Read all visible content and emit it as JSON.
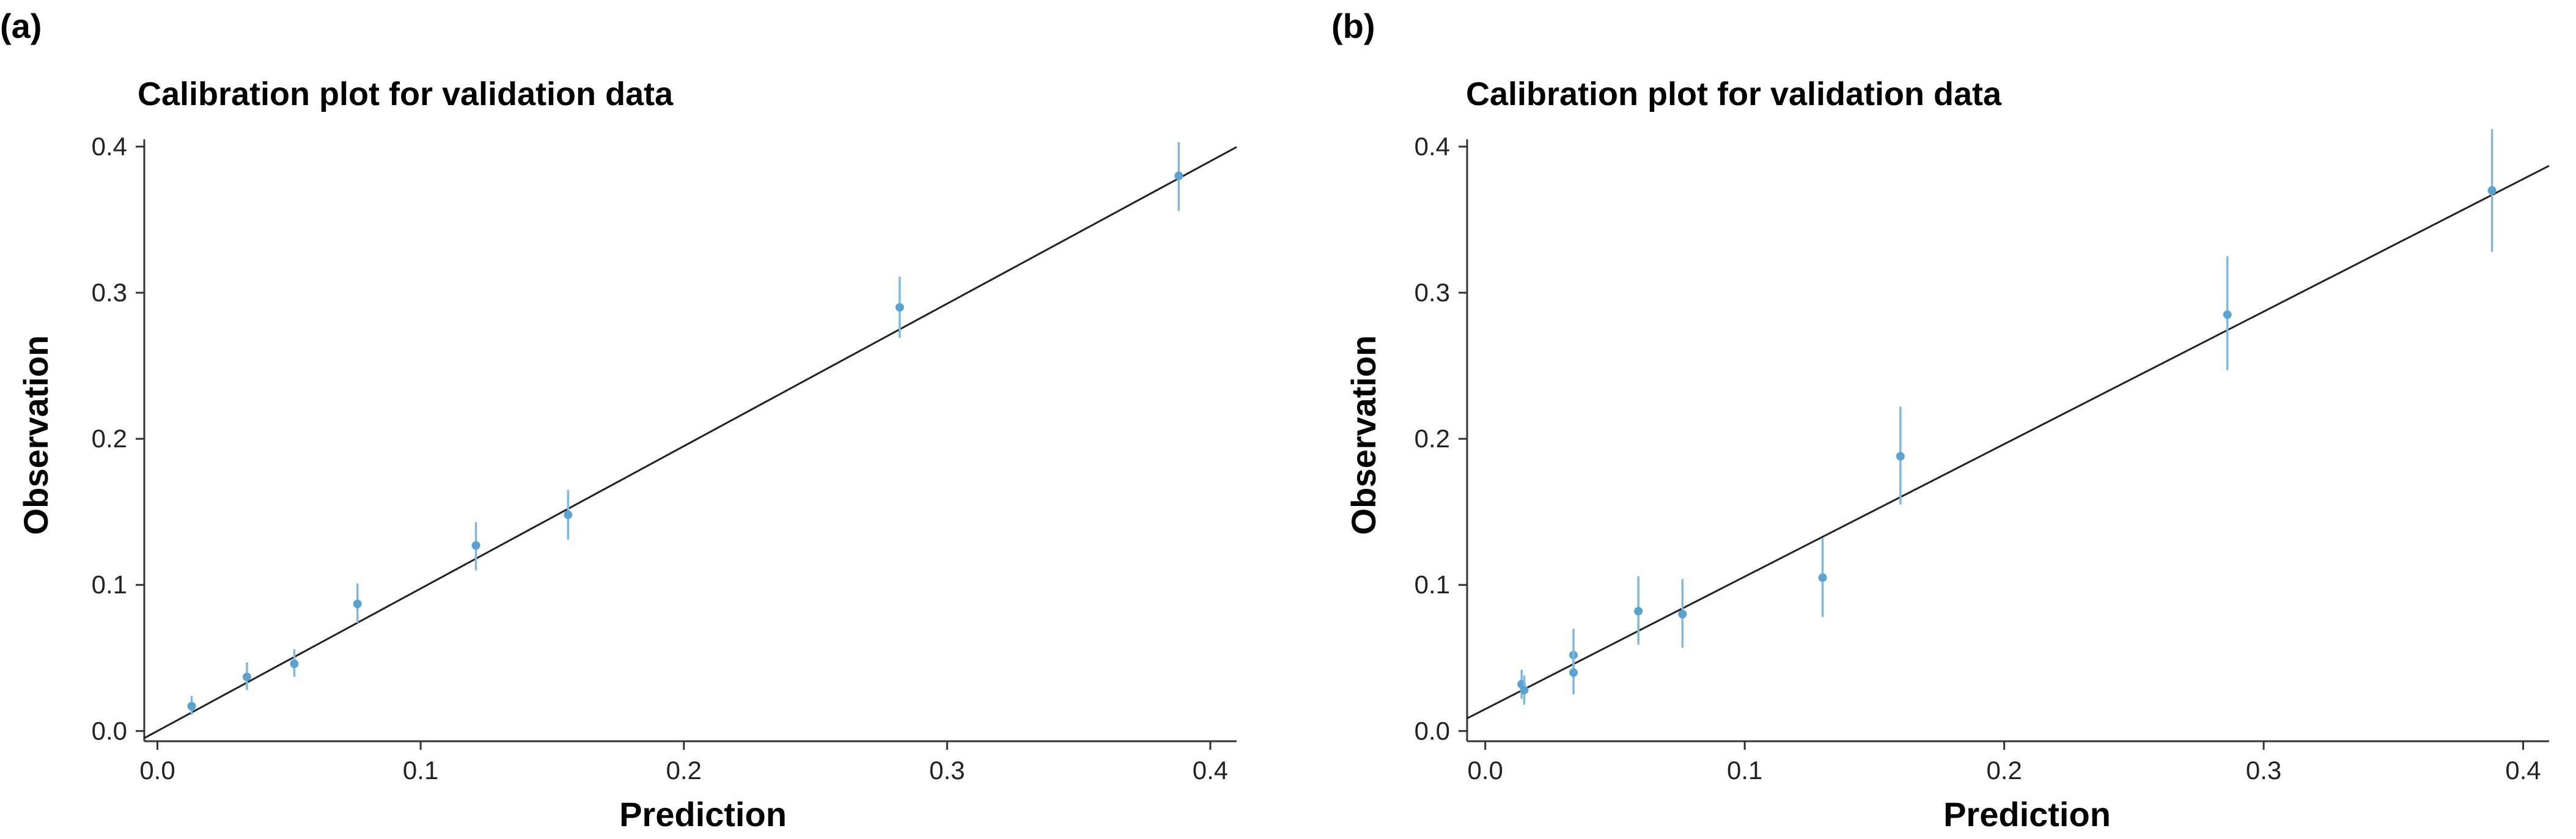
{
  "chart_data": [
    {
      "type": "scatter",
      "panel_label": "(a)",
      "title": "Calibration plot for validation data",
      "xlabel": "Prediction",
      "ylabel": "Observation",
      "xlim": [
        -0.005,
        0.41
      ],
      "ylim": [
        -0.007,
        0.405
      ],
      "xticks": [
        0.0,
        0.1,
        0.2,
        0.3,
        0.4
      ],
      "yticks": [
        0.0,
        0.1,
        0.2,
        0.3,
        0.4
      ],
      "xtick_labels": [
        "0.0",
        "0.1",
        "0.2",
        "0.3",
        "0.4"
      ],
      "ytick_labels": [
        "0.0",
        "0.1",
        "0.2",
        "0.3",
        "0.4"
      ],
      "reference_line": {
        "intercept": 0.0,
        "slope": 0.975
      },
      "points": [
        {
          "x": 0.013,
          "y": 0.017,
          "lower": 0.011,
          "upper": 0.024
        },
        {
          "x": 0.034,
          "y": 0.037,
          "lower": 0.028,
          "upper": 0.047
        },
        {
          "x": 0.052,
          "y": 0.046,
          "lower": 0.037,
          "upper": 0.056
        },
        {
          "x": 0.076,
          "y": 0.087,
          "lower": 0.074,
          "upper": 0.101
        },
        {
          "x": 0.121,
          "y": 0.127,
          "lower": 0.11,
          "upper": 0.143
        },
        {
          "x": 0.156,
          "y": 0.148,
          "lower": 0.131,
          "upper": 0.165
        },
        {
          "x": 0.282,
          "y": 0.29,
          "lower": 0.269,
          "upper": 0.311
        },
        {
          "x": 0.388,
          "y": 0.38,
          "lower": 0.356,
          "upper": 0.403
        }
      ]
    },
    {
      "type": "scatter",
      "panel_label": "(b)",
      "title": "Calibration plot for validation data",
      "xlabel": "Prediction",
      "ylabel": "Observation",
      "xlim": [
        -0.007,
        0.41
      ],
      "ylim": [
        -0.007,
        0.405
      ],
      "xticks": [
        0.0,
        0.1,
        0.2,
        0.3,
        0.4
      ],
      "yticks": [
        0.0,
        0.1,
        0.2,
        0.3,
        0.4
      ],
      "xtick_labels": [
        "0.0",
        "0.1",
        "0.2",
        "0.3",
        "0.4"
      ],
      "ytick_labels": [
        "0.0",
        "0.1",
        "0.2",
        "0.3",
        "0.4"
      ],
      "reference_line": {
        "intercept": 0.015,
        "slope": 0.907
      },
      "points": [
        {
          "x": 0.014,
          "y": 0.032,
          "lower": 0.022,
          "upper": 0.042
        },
        {
          "x": 0.015,
          "y": 0.028,
          "lower": 0.018,
          "upper": 0.038
        },
        {
          "x": 0.034,
          "y": 0.052,
          "lower": 0.036,
          "upper": 0.07
        },
        {
          "x": 0.034,
          "y": 0.04,
          "lower": 0.025,
          "upper": 0.055
        },
        {
          "x": 0.059,
          "y": 0.082,
          "lower": 0.059,
          "upper": 0.106
        },
        {
          "x": 0.076,
          "y": 0.08,
          "lower": 0.057,
          "upper": 0.104
        },
        {
          "x": 0.13,
          "y": 0.105,
          "lower": 0.078,
          "upper": 0.132
        },
        {
          "x": 0.16,
          "y": 0.188,
          "lower": 0.155,
          "upper": 0.222
        },
        {
          "x": 0.286,
          "y": 0.285,
          "lower": 0.247,
          "upper": 0.325
        },
        {
          "x": 0.388,
          "y": 0.37,
          "lower": 0.328,
          "upper": 0.412
        }
      ]
    }
  ]
}
